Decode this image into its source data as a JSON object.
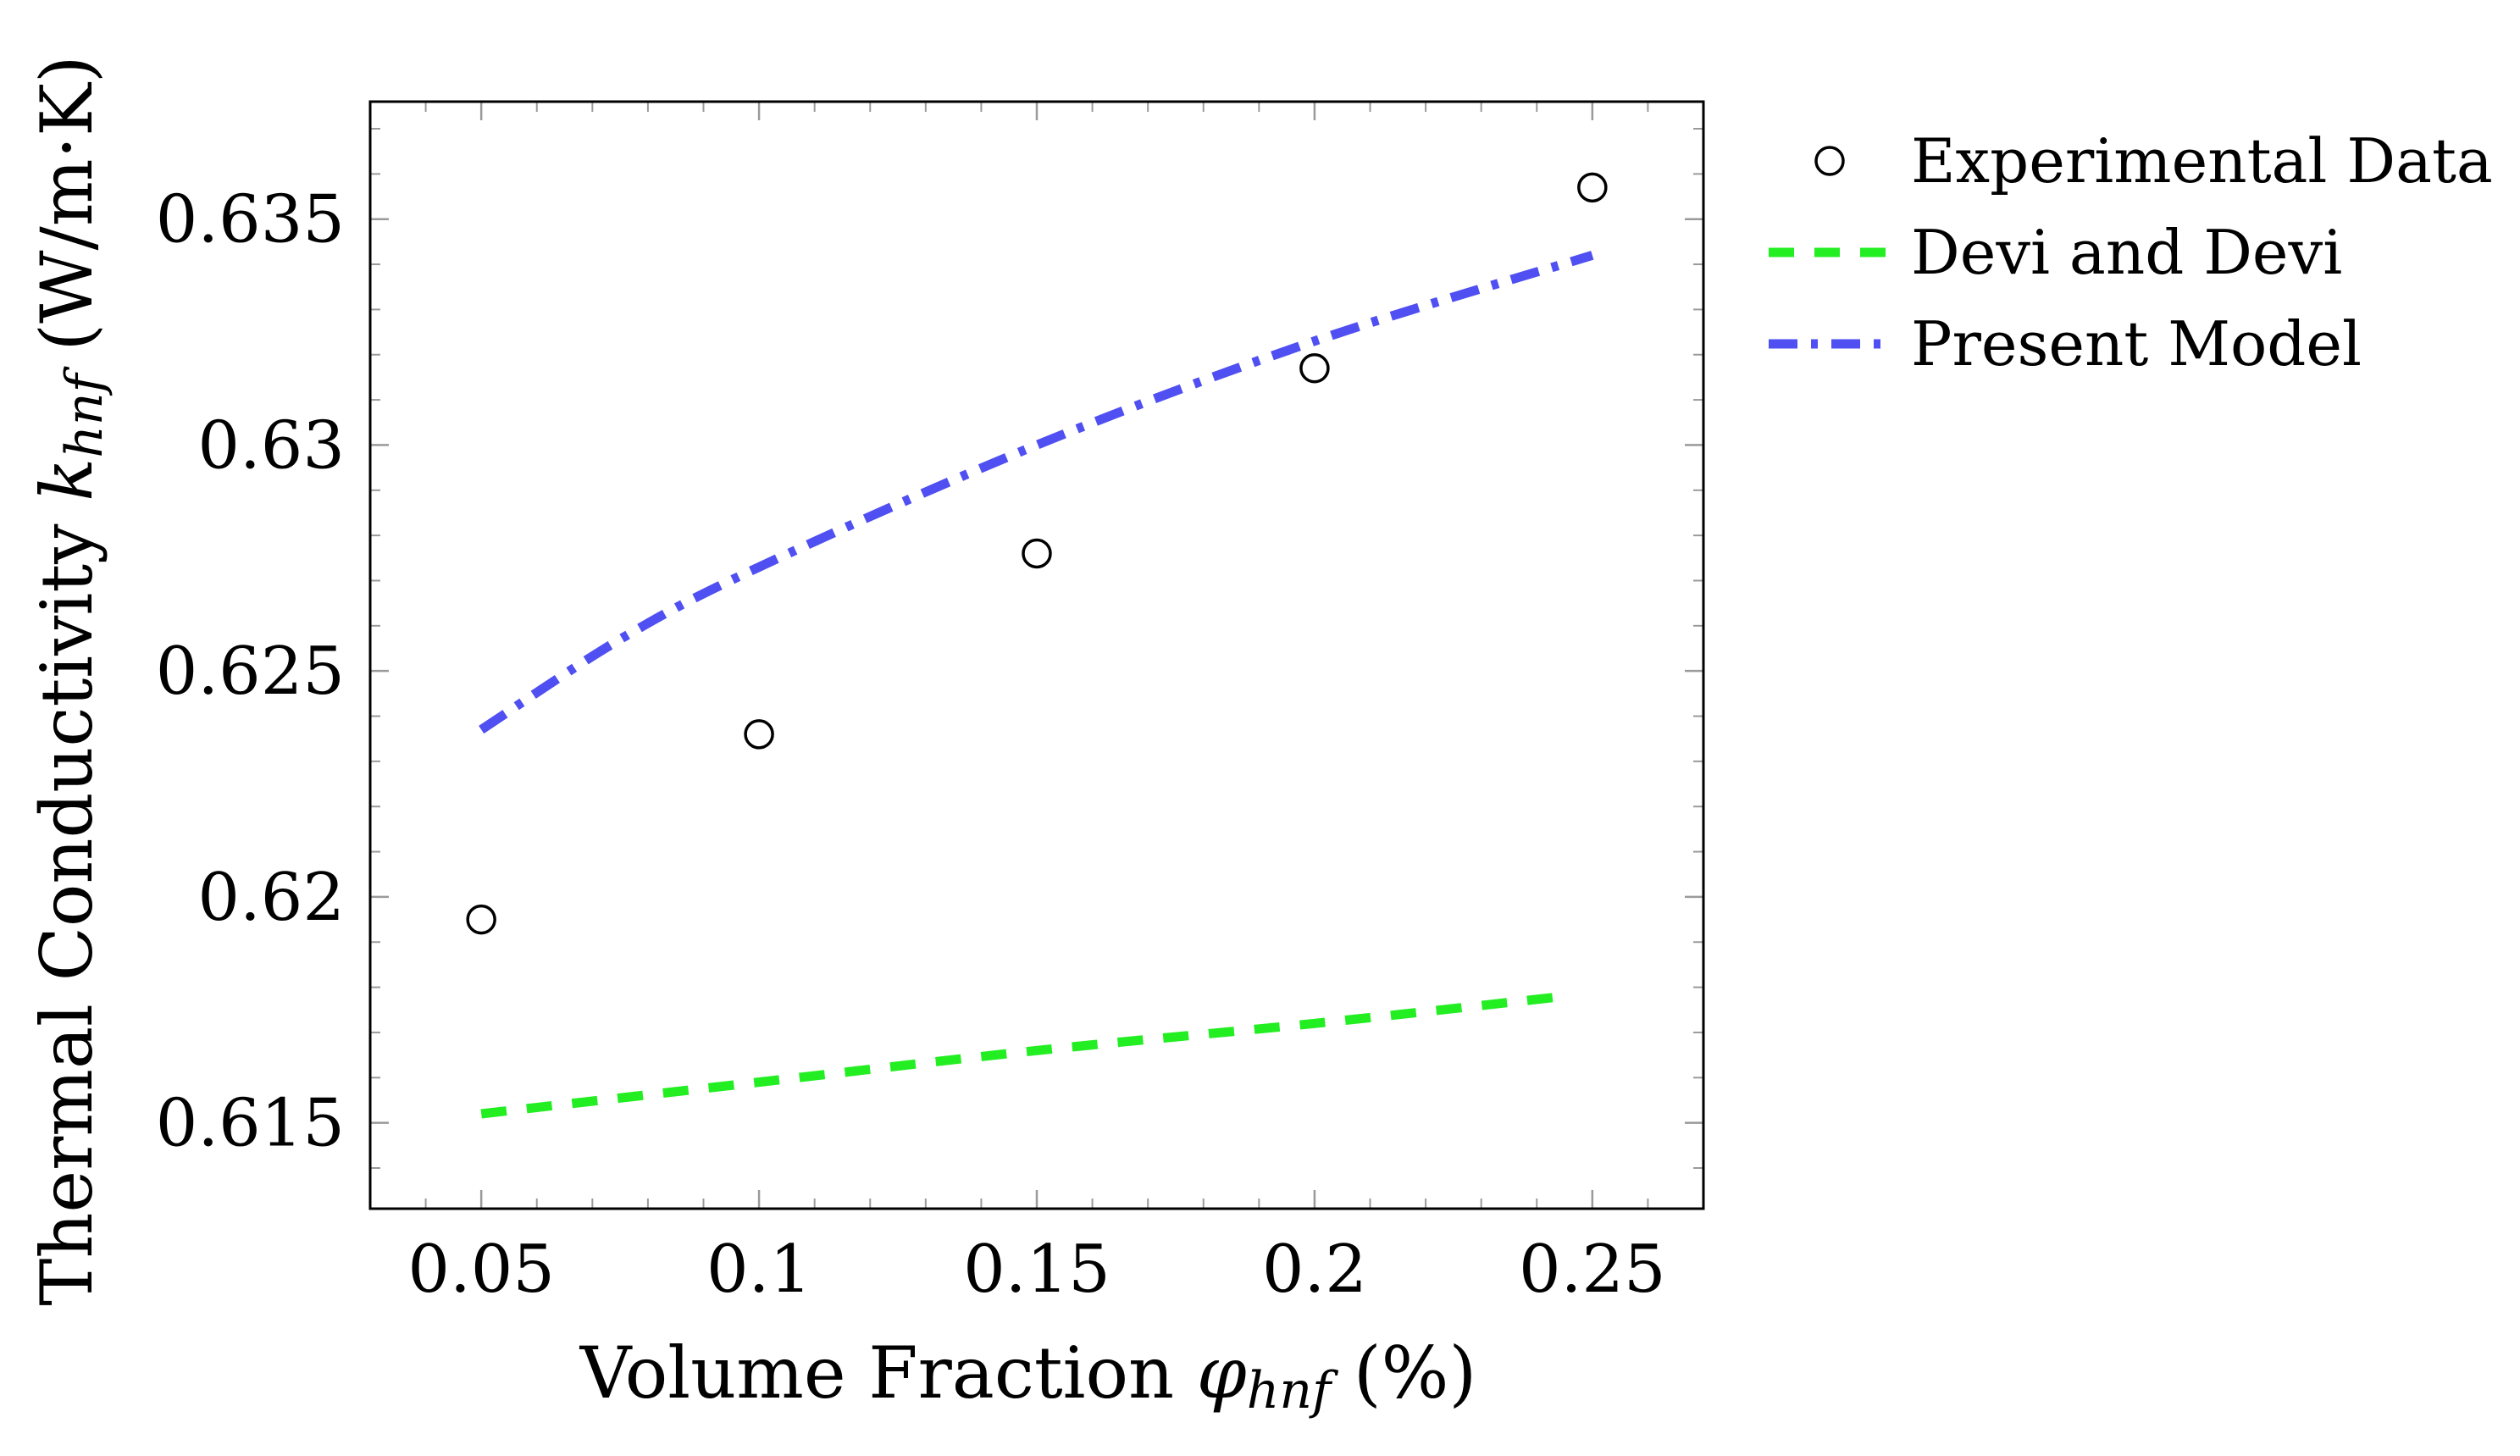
{
  "chart_data": {
    "type": "line",
    "xlabel": {
      "prefix": "Volume Fraction ",
      "symbol": "φ",
      "subscript": "hnf",
      "suffix": " (%)"
    },
    "ylabel": {
      "prefix": "Thermal Conductivity ",
      "symbol": "k",
      "subscript": "hnf",
      "suffix": " (W/m·K)"
    },
    "xlim": [
      0.03,
      0.27
    ],
    "ylim": [
      0.6131,
      0.6376
    ],
    "x_ticks": [
      0.05,
      0.1,
      0.15,
      0.2,
      0.25
    ],
    "x_tick_labels": [
      "0.05",
      "0.1",
      "0.15",
      "0.2",
      "0.25"
    ],
    "y_ticks": [
      0.615,
      0.62,
      0.625,
      0.63,
      0.635
    ],
    "y_tick_labels": [
      "0.615",
      "0.62",
      "0.625",
      "0.63",
      "0.635"
    ],
    "grid": false,
    "legend_position": "outside-right-top",
    "series": [
      {
        "name": "Experimental Data",
        "style": "markers",
        "marker": "open-circle",
        "color": "#000000",
        "x": [
          0.05,
          0.1,
          0.15,
          0.2,
          0.25
        ],
        "y": [
          0.6195,
          0.6236,
          0.6276,
          0.6317,
          0.6357
        ]
      },
      {
        "name": "Devi and Devi",
        "style": "dashed",
        "color": "#22ee22",
        "x": [
          0.05,
          0.1,
          0.15,
          0.2,
          0.245
        ],
        "y": [
          0.6152,
          0.6159,
          0.6166,
          0.6172,
          0.6178
        ]
      },
      {
        "name": "Present Model",
        "style": "dash-dot",
        "color": "#4f4ff2",
        "x": [
          0.05,
          0.075,
          0.1,
          0.15,
          0.2,
          0.25
        ],
        "y": [
          0.6237,
          0.6257,
          0.6273,
          0.63,
          0.6323,
          0.6342
        ]
      }
    ]
  }
}
